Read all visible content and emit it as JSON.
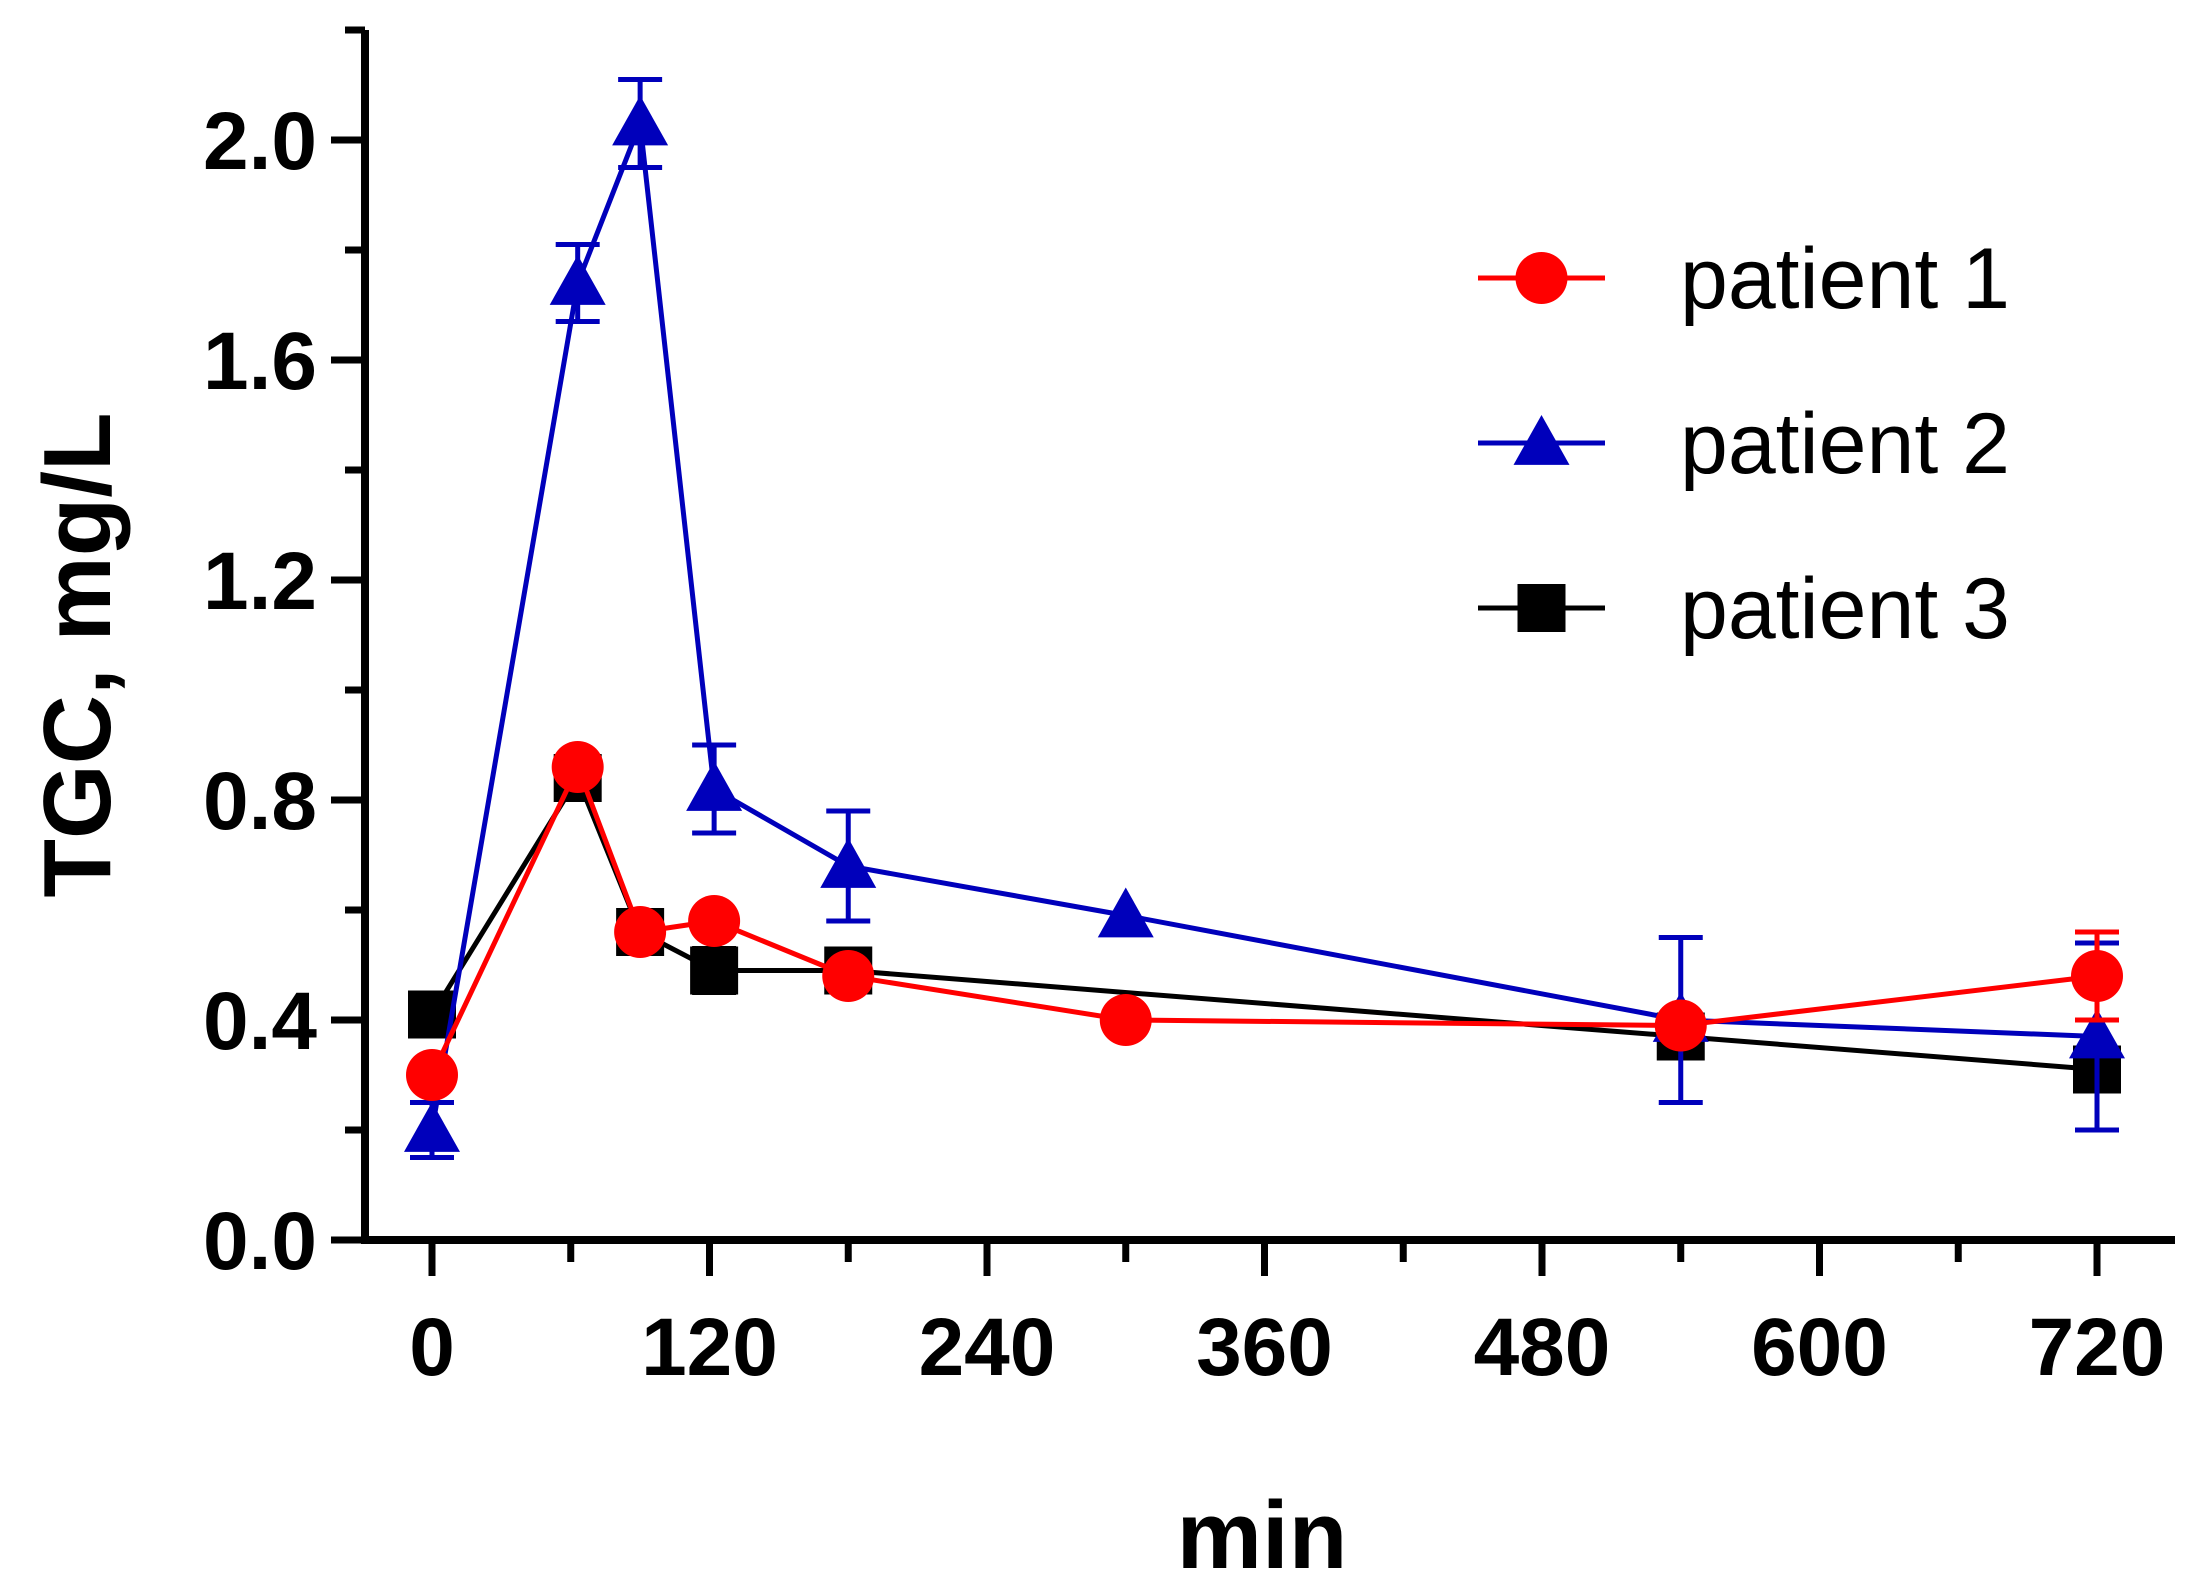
{
  "chart_data": {
    "type": "line",
    "title": "",
    "xlabel": "min",
    "ylabel": "TGC, mg/L",
    "xlim": [
      -30,
      750
    ],
    "ylim": [
      0,
      2.2
    ],
    "x_ticks": [
      0,
      120,
      240,
      360,
      480,
      600,
      720
    ],
    "x_tick_labels": [
      "0",
      "120",
      "240",
      "360",
      "480",
      "600",
      "720"
    ],
    "x_minor_ticks": [
      60,
      180,
      300,
      420,
      540,
      660
    ],
    "y_ticks": [
      0.0,
      0.4,
      0.8,
      1.2,
      1.6,
      2.0
    ],
    "y_tick_labels": [
      "0.0",
      "0.4",
      "0.8",
      "1.2",
      "1.6",
      "2.0"
    ],
    "y_minor_ticks": [
      0.2,
      0.6,
      1.0,
      1.4,
      1.8,
      2.2
    ],
    "legend_position": "top-right",
    "series": [
      {
        "name": "patient 1",
        "color": "#ff0000",
        "marker": "circle",
        "x": [
          0,
          63,
          90,
          122,
          180,
          300,
          540,
          720
        ],
        "y": [
          0.3,
          0.86,
          0.56,
          0.58,
          0.48,
          0.4,
          0.39,
          0.48
        ],
        "err": [
          0,
          0,
          0,
          0,
          0,
          0,
          0,
          0.08
        ]
      },
      {
        "name": "patient 2",
        "color": "#0000bb",
        "marker": "triangle",
        "x": [
          0,
          63,
          90,
          122,
          180,
          300,
          540,
          720
        ],
        "y": [
          0.2,
          1.74,
          2.03,
          0.82,
          0.68,
          0.59,
          0.4,
          0.37
        ],
        "err": [
          0.05,
          0.07,
          0.08,
          0.08,
          0.1,
          0,
          0.15,
          0.17
        ]
      },
      {
        "name": "patient 3",
        "color": "#000000",
        "marker": "square",
        "x": [
          0,
          63,
          90,
          122,
          180,
          540,
          720
        ],
        "y": [
          0.41,
          0.84,
          0.56,
          0.49,
          0.49,
          0.37,
          0.31
        ],
        "err": [
          0,
          0,
          0,
          0.04,
          0,
          0,
          0
        ]
      }
    ]
  }
}
